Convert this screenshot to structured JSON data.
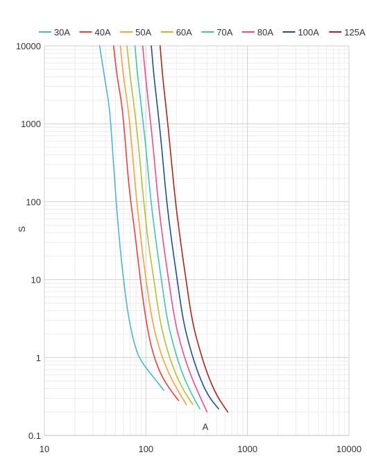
{
  "chart_data": {
    "type": "line",
    "x_scale": "log",
    "y_scale": "log",
    "xlim": [
      10,
      10000
    ],
    "ylim": [
      0.1,
      10000
    ],
    "x_ticks": [
      "10",
      "100",
      "1000",
      "10000"
    ],
    "y_ticks": [
      "0.1",
      "1",
      "10",
      "100",
      "1000",
      "10000"
    ],
    "xlabel": "A",
    "ylabel": "S",
    "legend_position": "top",
    "grid": "log-minor",
    "series": [
      {
        "name": "30A",
        "color": "#4db3d6",
        "points": [
          [
            35,
            10000
          ],
          [
            39,
            4000
          ],
          [
            44,
            1600
          ],
          [
            48,
            300
          ],
          [
            53,
            50
          ],
          [
            60,
            10
          ],
          [
            68,
            3
          ],
          [
            80,
            1.2
          ],
          [
            95,
            0.8
          ],
          [
            120,
            0.55
          ],
          [
            150,
            0.38
          ]
        ]
      },
      {
        "name": "40A",
        "color": "#e8403f",
        "points": [
          [
            48,
            10000
          ],
          [
            52,
            4000
          ],
          [
            58,
            1800
          ],
          [
            62,
            700
          ],
          [
            68,
            150
          ],
          [
            78,
            40
          ],
          [
            88,
            10
          ],
          [
            100,
            3
          ],
          [
            115,
            1.2
          ],
          [
            140,
            0.6
          ],
          [
            175,
            0.38
          ],
          [
            210,
            0.28
          ]
        ]
      },
      {
        "name": "50A",
        "color": "#f7a13a",
        "points": [
          [
            56,
            10000
          ],
          [
            60,
            4000
          ],
          [
            66,
            1800
          ],
          [
            72,
            600
          ],
          [
            80,
            120
          ],
          [
            90,
            30
          ],
          [
            100,
            10
          ],
          [
            115,
            3
          ],
          [
            135,
            1.3
          ],
          [
            165,
            0.65
          ],
          [
            205,
            0.38
          ],
          [
            250,
            0.25
          ]
        ]
      },
      {
        "name": "60A",
        "color": "#b5bf2e",
        "points": [
          [
            65,
            10000
          ],
          [
            70,
            4000
          ],
          [
            77,
            1600
          ],
          [
            85,
            500
          ],
          [
            95,
            100
          ],
          [
            106,
            28
          ],
          [
            120,
            10
          ],
          [
            137,
            3
          ],
          [
            160,
            1.3
          ],
          [
            195,
            0.62
          ],
          [
            240,
            0.36
          ],
          [
            290,
            0.25
          ]
        ]
      },
      {
        "name": "70A",
        "color": "#42c4a8",
        "points": [
          [
            78,
            10000
          ],
          [
            83,
            4000
          ],
          [
            91,
            1500
          ],
          [
            100,
            500
          ],
          [
            112,
            100
          ],
          [
            126,
            30
          ],
          [
            142,
            10
          ],
          [
            162,
            3
          ],
          [
            190,
            1.3
          ],
          [
            230,
            0.6
          ],
          [
            285,
            0.33
          ],
          [
            340,
            0.22
          ]
        ]
      },
      {
        "name": "80A",
        "color": "#ec4b8a",
        "points": [
          [
            93,
            10000
          ],
          [
            99,
            4000
          ],
          [
            108,
            1500
          ],
          [
            118,
            500
          ],
          [
            132,
            100
          ],
          [
            148,
            30
          ],
          [
            167,
            10
          ],
          [
            192,
            3
          ],
          [
            225,
            1.3
          ],
          [
            275,
            0.6
          ],
          [
            335,
            0.33
          ],
          [
            400,
            0.2
          ]
        ]
      },
      {
        "name": "100A",
        "color": "#1f4d8f",
        "points": [
          [
            113,
            10000
          ],
          [
            120,
            4000
          ],
          [
            131,
            1500
          ],
          [
            143,
            500
          ],
          [
            160,
            100
          ],
          [
            180,
            30
          ],
          [
            203,
            10
          ],
          [
            232,
            3
          ],
          [
            272,
            1.3
          ],
          [
            330,
            0.6
          ],
          [
            410,
            0.32
          ],
          [
            520,
            0.22
          ]
        ]
      },
      {
        "name": "125A",
        "color": "#a8241d",
        "points": [
          [
            138,
            10000
          ],
          [
            146,
            4000
          ],
          [
            159,
            1500
          ],
          [
            173,
            500
          ],
          [
            195,
            100
          ],
          [
            220,
            30
          ],
          [
            248,
            10
          ],
          [
            284,
            3
          ],
          [
            335,
            1.3
          ],
          [
            405,
            0.6
          ],
          [
            500,
            0.32
          ],
          [
            640,
            0.2
          ]
        ]
      }
    ]
  }
}
